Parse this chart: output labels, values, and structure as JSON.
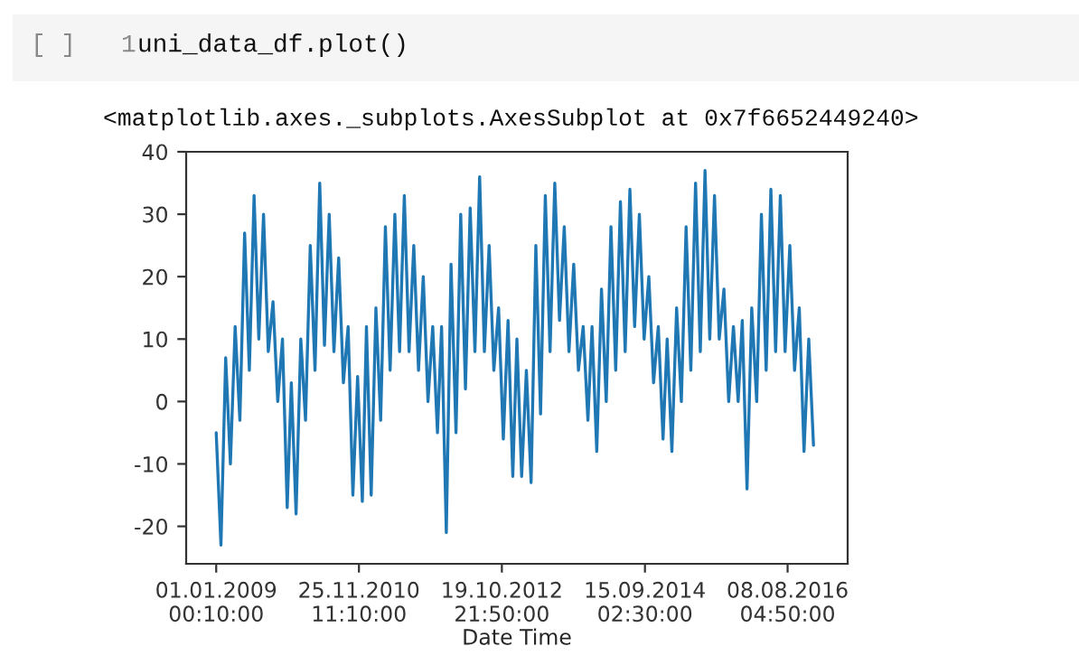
{
  "chart_data": {
    "type": "line",
    "xlabel": "Date Time",
    "annotations": [
      "[ ]",
      "1",
      "uni_data_df.plot()",
      "<matplotlib.axes._subplots.AxesSubplot at 0x7f6652449240>"
    ],
    "x": [
      "2009-01-01",
      "2009-01-24",
      "2009-02-16",
      "2009-03-11",
      "2009-04-03",
      "2009-04-26",
      "2009-05-19",
      "2009-06-11",
      "2009-07-04",
      "2009-07-27",
      "2009-08-19",
      "2009-09-11",
      "2009-10-04",
      "2009-10-27",
      "2009-11-19",
      "2009-12-12",
      "2010-01-01",
      "2010-01-24",
      "2010-02-16",
      "2010-03-11",
      "2010-04-03",
      "2010-04-26",
      "2010-05-19",
      "2010-06-11",
      "2010-07-04",
      "2010-07-27",
      "2010-08-19",
      "2010-09-11",
      "2010-10-04",
      "2010-10-27",
      "2010-11-19",
      "2010-12-12",
      "2011-01-01",
      "2011-01-24",
      "2011-02-16",
      "2011-03-11",
      "2011-04-03",
      "2011-04-26",
      "2011-05-19",
      "2011-06-11",
      "2011-07-04",
      "2011-07-27",
      "2011-08-19",
      "2011-09-11",
      "2011-10-04",
      "2011-10-27",
      "2011-11-19",
      "2011-12-12",
      "2012-01-01",
      "2012-01-24",
      "2012-02-16",
      "2012-03-11",
      "2012-04-03",
      "2012-04-26",
      "2012-05-19",
      "2012-06-11",
      "2012-07-04",
      "2012-07-27",
      "2012-08-19",
      "2012-09-11",
      "2012-10-04",
      "2012-10-27",
      "2012-11-19",
      "2012-12-12",
      "2013-01-01",
      "2013-01-24",
      "2013-02-16",
      "2013-03-11",
      "2013-04-03",
      "2013-04-26",
      "2013-05-19",
      "2013-06-11",
      "2013-07-04",
      "2013-07-27",
      "2013-08-19",
      "2013-09-11",
      "2013-10-04",
      "2013-10-27",
      "2013-11-19",
      "2013-12-12",
      "2014-01-01",
      "2014-01-24",
      "2014-02-16",
      "2014-03-11",
      "2014-04-03",
      "2014-04-26",
      "2014-05-19",
      "2014-06-11",
      "2014-07-04",
      "2014-07-27",
      "2014-08-19",
      "2014-09-11",
      "2014-10-04",
      "2014-10-27",
      "2014-11-19",
      "2014-12-12",
      "2015-01-01",
      "2015-01-24",
      "2015-02-16",
      "2015-03-11",
      "2015-04-03",
      "2015-04-26",
      "2015-05-19",
      "2015-06-11",
      "2015-07-04",
      "2015-07-27",
      "2015-08-19",
      "2015-09-11",
      "2015-10-04",
      "2015-10-27",
      "2015-11-19",
      "2015-12-12",
      "2016-01-01",
      "2016-01-24",
      "2016-02-16",
      "2016-03-11",
      "2016-04-03",
      "2016-04-26",
      "2016-05-19",
      "2016-06-11",
      "2016-07-04",
      "2016-07-27",
      "2016-08-19",
      "2016-09-11",
      "2016-10-04",
      "2016-10-27",
      "2016-11-19",
      "2016-12-12"
    ],
    "series": [
      {
        "color": "#1f77b4",
        "values": [
          -5,
          -23,
          7,
          -10,
          12,
          -3,
          27,
          5,
          33,
          10,
          30,
          8,
          16,
          0,
          10,
          -17,
          3,
          -18,
          10,
          -3,
          25,
          5,
          35,
          9,
          30,
          8,
          23,
          3,
          12,
          -15,
          4,
          -16,
          12,
          -15,
          15,
          -3,
          28,
          5,
          30,
          8,
          33,
          8,
          25,
          5,
          20,
          0,
          12,
          -5,
          12,
          -21,
          22,
          -5,
          30,
          2,
          31,
          8,
          36,
          8,
          25,
          5,
          15,
          -6,
          13,
          -12,
          10,
          -12,
          5,
          -13,
          25,
          -2,
          33,
          8,
          35,
          13,
          28,
          8,
          22,
          5,
          12,
          -3,
          12,
          -8,
          18,
          0,
          28,
          5,
          32,
          8,
          34,
          12,
          30,
          10,
          20,
          3,
          12,
          -6,
          10,
          -8,
          15,
          0,
          28,
          5,
          35,
          8,
          37,
          10,
          33,
          10,
          18,
          0,
          12,
          0,
          13,
          -14,
          15,
          0,
          30,
          5,
          34,
          8,
          33,
          8,
          25,
          5,
          15,
          -8,
          10,
          -7
        ]
      }
    ],
    "xlim": [
      "2008-08-08",
      "2017-05-27"
    ],
    "xticks": [
      {
        "value": "2009-01-01T00:10",
        "label": "01.01.2009 00:10:00"
      },
      {
        "value": "2010-11-25T11:10",
        "label": "25.11.2010 11:10:00"
      },
      {
        "value": "2012-10-19T21:50",
        "label": "19.10.2012 21:50:00"
      },
      {
        "value": "2014-09-15T02:30",
        "label": "15.09.2014 02:30:00"
      },
      {
        "value": "2016-08-08T04:50",
        "label": "08.08.2016 04:50:00"
      }
    ],
    "ylim": [
      -26,
      40
    ],
    "yticks": [
      -20,
      -10,
      0,
      10,
      20,
      30,
      40
    ],
    "grid": false,
    "legend": false
  }
}
